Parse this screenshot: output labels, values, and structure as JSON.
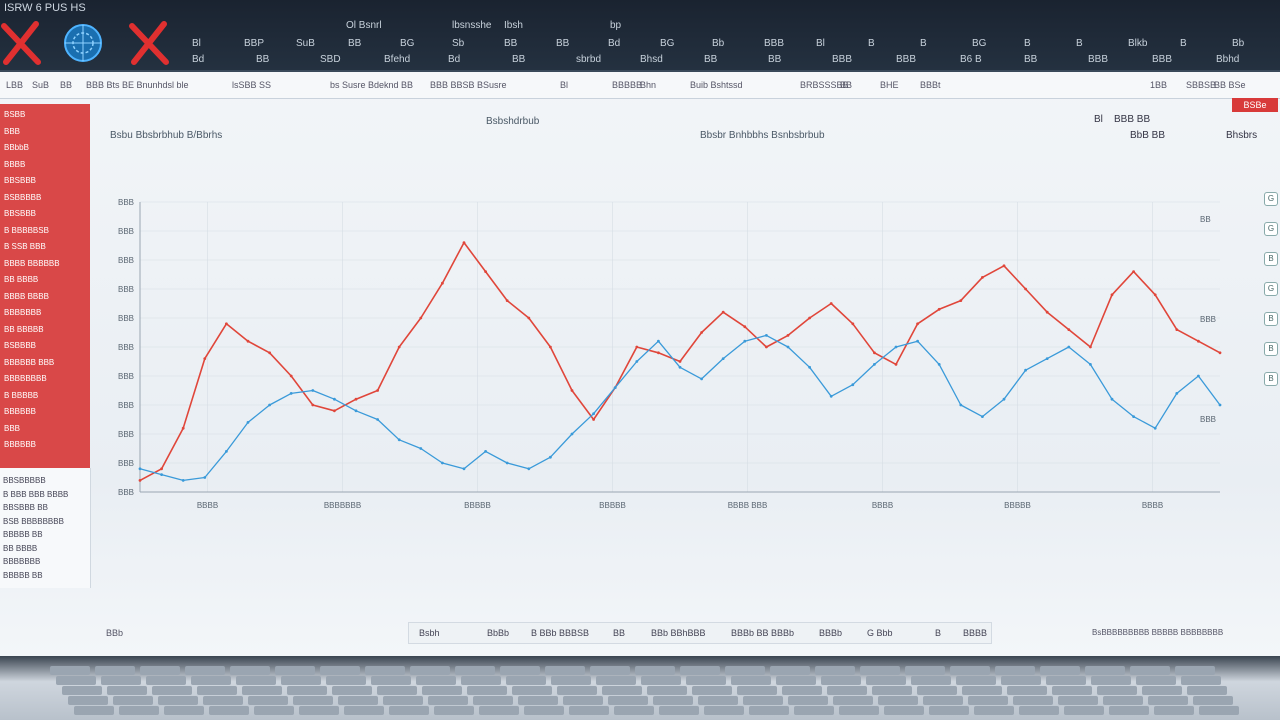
{
  "window": {
    "title": "ISRW 6 PUS HS"
  },
  "toolbar": {
    "top_items": [
      "Ol Bsnrl",
      "lbsnsshe",
      "Ibsh",
      "bp"
    ],
    "row1": [
      "Bl",
      "BBP",
      "SuB",
      "BB",
      "BG",
      "Sb",
      "BB",
      "BB",
      "Bd",
      "BG",
      "Bb",
      "BBB",
      "Bl",
      "B",
      "B",
      "BG",
      "B",
      "B",
      "Blkb",
      "B",
      "Bb"
    ],
    "row2": [
      "Bd",
      "BB",
      "SBD",
      "Bfehd",
      "Bd",
      "BB",
      "sbrbd",
      "Bhsd",
      "BB",
      "BB",
      "BBB",
      "BBB",
      "B6 B",
      "BB",
      "BBB",
      "BBB",
      "Bbhd"
    ]
  },
  "menubar": {
    "items": [
      "LBB",
      "SuB",
      "BB",
      "BBB Bts BE Bnunhdsl ble",
      "lsSBB SS",
      "bs Susre Bdeknd BB",
      "BBB BBSB BSusre",
      "Bl",
      "BBBBB",
      "Bhn",
      "Buib Bshtssd",
      "BRBSSSBB",
      "BB",
      "BHE",
      "BBBt"
    ],
    "right_items": [
      "1BB",
      "SBBSB",
      "BB BSe"
    ]
  },
  "export_label": "BSBe",
  "sidebar": {
    "items": [
      "BSBB",
      "BBB",
      "BBbbB",
      "BBBB",
      "BBSBBB",
      "BSBBBBB",
      "BBSBBB",
      "B BBBBBSB",
      "B SSB BBB",
      "BBBB BBBBBB",
      "BB BBBB",
      "BBBB BBBB",
      "BBBBBBB",
      "BB BBBBB",
      "BSBBBB",
      "BBBBBB BBB",
      "BBBBBBBB",
      "B BBBBB",
      "BBBBBB",
      "BBB",
      "BBBBBB"
    ],
    "lower_items": [
      "BBSBBBBB",
      "B BBB BBB BBBB",
      "BBSBBB BB",
      "BSB BBBBBBBB",
      "BBBBB BB",
      "BB BBBB",
      "BBBBBBB",
      "BBBBB BB"
    ]
  },
  "chart_titles": [
    "Bsbu Bbsbrbhub B/Bbrhs",
    "Bsbshdrbub",
    "Bbsbr Bnhbbhs Bsnbsbrbub"
  ],
  "controls": {
    "legend_items": [
      "Bl",
      "BBB BB",
      "BbB BB",
      "Bhsbrs"
    ]
  },
  "right_rail": [
    "G",
    "G",
    "B",
    "G",
    "B",
    "B",
    "B"
  ],
  "bottom_bar": [
    "Bsbh",
    "BbBb",
    "B BBb BBBSB",
    "BB",
    "BBb BBhBBB",
    "BBBb BB BBBb",
    "BBBb",
    "G Bbb",
    "B",
    "BBBB"
  ],
  "status": {
    "left": "BBb",
    "right": "BsBBBBBBBBB BBBBB BBBBBBBB"
  },
  "chart_data": {
    "type": "line",
    "y_tick_labels": [
      "BBB",
      "BBB",
      "BBB",
      "BBB",
      "BBB",
      "BBB",
      "BBB",
      "BBB",
      "BBB",
      "BBB",
      "BBB"
    ],
    "x_tick_labels": [
      "BBBB",
      "BBBBBBB",
      "BBBBB",
      "BBBBB",
      "BBBB BBB",
      "BBBB",
      "BBBBB",
      "BBBB"
    ],
    "annotations": [
      "BB",
      "BBB",
      "BBB"
    ],
    "ylim": [
      0,
      100
    ],
    "x": [
      0,
      4,
      8,
      12,
      16,
      20,
      24,
      28,
      32,
      36,
      40,
      44,
      48,
      52,
      56,
      60,
      64,
      68,
      72,
      76,
      80,
      84,
      88,
      92,
      96,
      100,
      104,
      108,
      112,
      116,
      120,
      124,
      128,
      132,
      136,
      140,
      144,
      148,
      152,
      156,
      160,
      164,
      168,
      172,
      176,
      180,
      184,
      188,
      192,
      196,
      200
    ],
    "series": [
      {
        "color": "#e0463a",
        "values": [
          4,
          8,
          22,
          46,
          58,
          52,
          48,
          40,
          30,
          28,
          32,
          35,
          50,
          60,
          72,
          86,
          76,
          66,
          60,
          50,
          35,
          25,
          36,
          50,
          48,
          45,
          55,
          62,
          57,
          50,
          54,
          60,
          65,
          58,
          48,
          44,
          58,
          63,
          66,
          74,
          78,
          70,
          62,
          56,
          50,
          68,
          76,
          68,
          56,
          52,
          48
        ]
      },
      {
        "color": "#3a9ad9",
        "values": [
          8,
          6,
          4,
          5,
          14,
          24,
          30,
          34,
          35,
          32,
          28,
          25,
          18,
          15,
          10,
          8,
          14,
          10,
          8,
          12,
          20,
          27,
          36,
          45,
          52,
          43,
          39,
          46,
          52,
          54,
          50,
          43,
          33,
          37,
          44,
          50,
          52,
          44,
          30,
          26,
          32,
          42,
          46,
          50,
          44,
          32,
          26,
          22,
          34,
          40,
          30
        ]
      }
    ]
  }
}
